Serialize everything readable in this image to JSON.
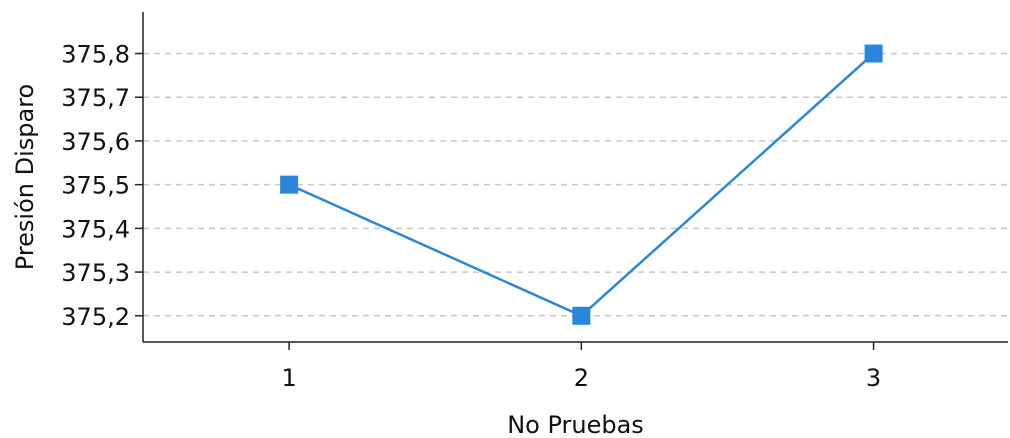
{
  "chart_data": {
    "type": "line",
    "title": "",
    "xlabel": "No Pruebas",
    "ylabel": "Presión Disparo",
    "x": [
      1,
      2,
      3
    ],
    "xticks": [
      "1",
      "2",
      "3"
    ],
    "xlim": [
      0.5,
      3.46
    ],
    "ylim": [
      375.14,
      375.895
    ],
    "yticks": [
      "375,2",
      "375,3",
      "375,4",
      "375,5",
      "375,6",
      "375,7",
      "375,8"
    ],
    "ytick_values": [
      375.2,
      375.3,
      375.4,
      375.5,
      375.6,
      375.7,
      375.8
    ],
    "grid": true,
    "series": [
      {
        "values": [
          375.5,
          375.2,
          375.8
        ],
        "color": "#2a86db",
        "marker": "square"
      }
    ]
  }
}
